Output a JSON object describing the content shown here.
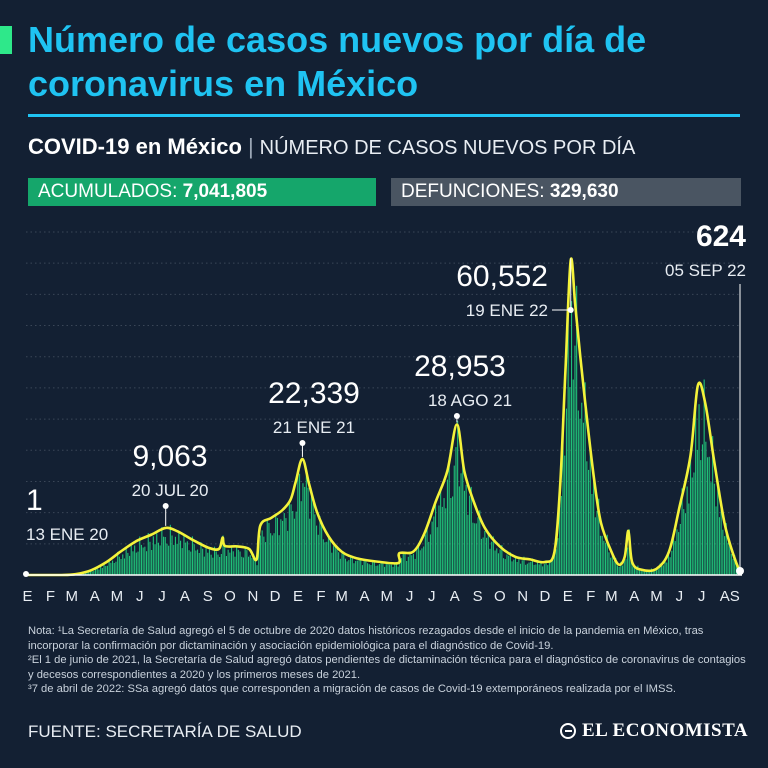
{
  "header": {
    "title": "Número de casos nuevos por día de coronavirus en México",
    "subtitle_strong": "COVID-19 en México",
    "subtitle_sep": "|",
    "subtitle_light": "NÚMERO DE CASOS NUEVOS POR DÍA"
  },
  "stats": {
    "acumulados_label": "ACUMULADOS:",
    "acumulados_value": "7,041,805",
    "defunciones_label": "DEFUNCIONES:",
    "defunciones_value": "329,630"
  },
  "colors": {
    "background": "#132033",
    "title": "#1fc3f2",
    "bars": "#22d17f",
    "line": "#f4f23a",
    "accumulated_box": "#15a66b",
    "deaths_box": "#4a5562"
  },
  "chart_data": {
    "type": "area",
    "y_scale": "linear",
    "grid": true,
    "ylim": [
      0,
      66000
    ],
    "x_range": [
      "2020-01-13",
      "2022-09-05"
    ],
    "month_ticks": [
      {
        "label": "E",
        "date": "2020-01-15"
      },
      {
        "label": "F",
        "date": "2020-02-15"
      },
      {
        "label": "M",
        "date": "2020-03-15"
      },
      {
        "label": "A",
        "date": "2020-04-15"
      },
      {
        "label": "M",
        "date": "2020-05-15"
      },
      {
        "label": "J",
        "date": "2020-06-15"
      },
      {
        "label": "J",
        "date": "2020-07-15"
      },
      {
        "label": "A",
        "date": "2020-08-15"
      },
      {
        "label": "S",
        "date": "2020-09-15"
      },
      {
        "label": "O",
        "date": "2020-10-15"
      },
      {
        "label": "N",
        "date": "2020-11-15"
      },
      {
        "label": "D",
        "date": "2020-12-15"
      },
      {
        "label": "E",
        "date": "2021-01-15"
      },
      {
        "label": "F",
        "date": "2021-02-15"
      },
      {
        "label": "M",
        "date": "2021-03-15"
      },
      {
        "label": "A",
        "date": "2021-04-15"
      },
      {
        "label": "M",
        "date": "2021-05-15"
      },
      {
        "label": "J",
        "date": "2021-06-15"
      },
      {
        "label": "J",
        "date": "2021-07-15"
      },
      {
        "label": "A",
        "date": "2021-08-15"
      },
      {
        "label": "S",
        "date": "2021-09-15"
      },
      {
        "label": "O",
        "date": "2021-10-15"
      },
      {
        "label": "N",
        "date": "2021-11-15"
      },
      {
        "label": "D",
        "date": "2021-12-15"
      },
      {
        "label": "E",
        "date": "2022-01-15"
      },
      {
        "label": "F",
        "date": "2022-02-15"
      },
      {
        "label": "M",
        "date": "2022-03-15"
      },
      {
        "label": "A",
        "date": "2022-04-15"
      },
      {
        "label": "M",
        "date": "2022-05-15"
      },
      {
        "label": "J",
        "date": "2022-06-15"
      },
      {
        "label": "J",
        "date": "2022-07-15"
      },
      {
        "label": "AS",
        "date": "2022-08-22"
      }
    ],
    "series": [
      {
        "points": [
          [
            "2020-01-13",
            1
          ],
          [
            "2020-03-01",
            0
          ],
          [
            "2020-03-20",
            150
          ],
          [
            "2020-04-10",
            900
          ],
          [
            "2020-05-01",
            2500
          ],
          [
            "2020-05-20",
            4500
          ],
          [
            "2020-06-10",
            6500
          ],
          [
            "2020-07-01",
            7800
          ],
          [
            "2020-07-20",
            9063
          ],
          [
            "2020-08-05",
            8400
          ],
          [
            "2020-08-25",
            6800
          ],
          [
            "2020-09-15",
            5300
          ],
          [
            "2020-09-30",
            5000
          ],
          [
            "2020-10-05",
            7200
          ],
          [
            "2020-10-08",
            5600
          ],
          [
            "2020-10-25",
            5500
          ],
          [
            "2020-11-10",
            5000
          ],
          [
            "2020-11-20",
            3000
          ],
          [
            "2020-11-25",
            9500
          ],
          [
            "2020-12-10",
            11000
          ],
          [
            "2020-12-25",
            12500
          ],
          [
            "2021-01-05",
            14500
          ],
          [
            "2021-01-12",
            18000
          ],
          [
            "2021-01-21",
            22339
          ],
          [
            "2021-01-30",
            17500
          ],
          [
            "2021-02-10",
            12000
          ],
          [
            "2021-02-25",
            7500
          ],
          [
            "2021-03-15",
            4500
          ],
          [
            "2021-04-05",
            3200
          ],
          [
            "2021-05-01",
            2600
          ],
          [
            "2021-05-31",
            2300
          ],
          [
            "2021-06-01",
            4200
          ],
          [
            "2021-06-20",
            4500
          ],
          [
            "2021-07-05",
            8000
          ],
          [
            "2021-07-20",
            14000
          ],
          [
            "2021-08-05",
            20000
          ],
          [
            "2021-08-18",
            28953
          ],
          [
            "2021-08-28",
            20000
          ],
          [
            "2021-09-10",
            14000
          ],
          [
            "2021-09-25",
            9000
          ],
          [
            "2021-10-15",
            5500
          ],
          [
            "2021-11-05",
            3500
          ],
          [
            "2021-11-25",
            3000
          ],
          [
            "2021-12-15",
            2500
          ],
          [
            "2021-12-28",
            4500
          ],
          [
            "2022-01-05",
            18000
          ],
          [
            "2022-01-12",
            40000
          ],
          [
            "2022-01-19",
            60552
          ],
          [
            "2022-01-25",
            52000
          ],
          [
            "2022-02-01",
            42000
          ],
          [
            "2022-02-10",
            30000
          ],
          [
            "2022-02-20",
            18000
          ],
          [
            "2022-03-01",
            10000
          ],
          [
            "2022-03-15",
            4500
          ],
          [
            "2022-03-25",
            2000
          ],
          [
            "2022-04-02",
            3500
          ],
          [
            "2022-04-07",
            8500
          ],
          [
            "2022-04-12",
            2500
          ],
          [
            "2022-04-25",
            1000
          ],
          [
            "2022-05-15",
            1200
          ],
          [
            "2022-06-01",
            4500
          ],
          [
            "2022-06-15",
            13000
          ],
          [
            "2022-06-30",
            23000
          ],
          [
            "2022-07-10",
            36500
          ],
          [
            "2022-07-20",
            33000
          ],
          [
            "2022-08-01",
            22000
          ],
          [
            "2022-08-15",
            10000
          ],
          [
            "2022-08-28",
            3500
          ],
          [
            "2022-09-05",
            624
          ]
        ]
      }
    ],
    "annotations": [
      {
        "value": "1",
        "date_label": "13 ENE 20",
        "date": "2020-01-13"
      },
      {
        "value": "9,063",
        "date_label": "20 JUL 20",
        "date": "2020-07-20"
      },
      {
        "value": "22,339",
        "date_label": "21 ENE 21",
        "date": "2021-01-21"
      },
      {
        "value": "28,953",
        "date_label": "18 AGO 21",
        "date": "2021-08-18"
      },
      {
        "value": "60,552",
        "date_label": "19 ENE 22",
        "date": "2022-01-19"
      },
      {
        "value": "624",
        "date_label": "05 SEP 22",
        "date": "2022-09-05"
      }
    ]
  },
  "notes": {
    "n1": "Nota: ¹La Secretaría de Salud agregó el 5 de octubre de 2020 datos históricos rezagados desde el inicio de la pandemia en México, tras incorporar la confirmación por dictaminación y asociación epidemiológica para el diagnóstico de Covid-19.",
    "n2": "²El 1 de junio de 2021, la Secretaría de Salud agregó datos pendientes de dictaminación técnica para el diagnóstico de coronavirus de contagios y decesos correspondientes a 2020 y los primeros meses de 2021.",
    "n3": "³7 de abril de 2022: SSa agregó datos que corresponden a migración de casos de Covid-19 extemporáneos realizada por el IMSS."
  },
  "footer": {
    "source": "FUENTE: SECRETARÍA DE SALUD",
    "logo_text": "EL ECONOMISTA",
    "logo_icon": "el-economista-logo-mark"
  }
}
